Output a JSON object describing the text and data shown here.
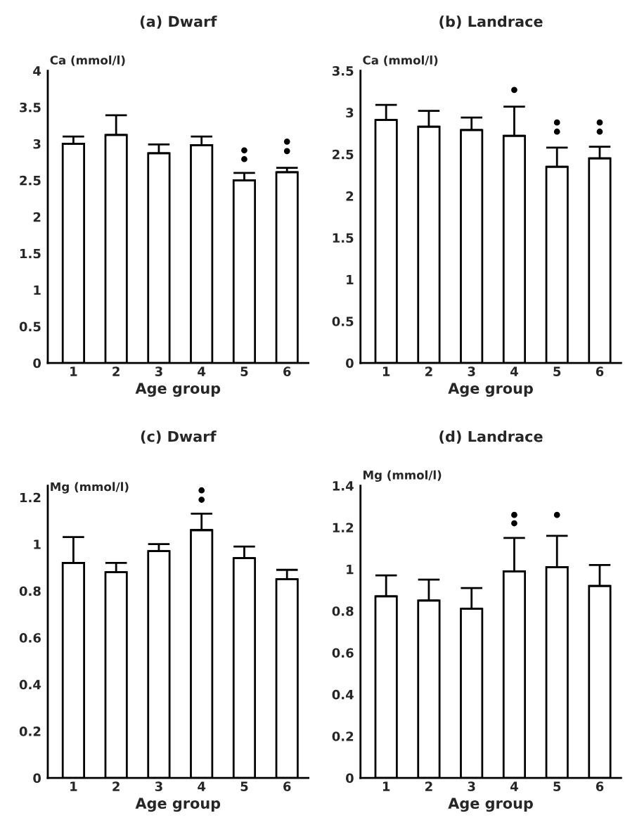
{
  "chart_data": [
    {
      "type": "bar",
      "title": "(a) Dwarf",
      "ylabel": "Ca (mmol/l)",
      "xlabel": "Age group",
      "categories": [
        "1",
        "2",
        "3",
        "4",
        "5",
        "6"
      ],
      "ylim": [
        0,
        4
      ],
      "yticks": [
        0,
        0.5,
        1,
        1.5,
        2,
        2.5,
        3,
        3.5,
        4
      ],
      "grid": false,
      "series": [
        {
          "color": "#ffffff",
          "values": [
            3.0,
            3.12,
            2.87,
            2.98,
            2.5,
            2.61
          ],
          "errors": [
            [
              3.0,
              3.1
            ],
            [
              3.12,
              3.39
            ],
            [
              2.87,
              2.99
            ],
            [
              2.98,
              3.1
            ],
            [
              2.5,
              2.6
            ],
            [
              2.61,
              2.67
            ]
          ]
        },
        {
          "type": "scatter",
          "color": "#000000",
          "marker": "circle",
          "x": [
            "5",
            "5",
            "6",
            "6"
          ],
          "values": [
            2.91,
            2.79,
            3.03,
            2.9
          ]
        }
      ]
    },
    {
      "type": "bar",
      "title": "(b) Landrace",
      "ylabel": "Ca (mmol/l)",
      "xlabel": "Age group",
      "categories": [
        "1",
        "2",
        "3",
        "4",
        "5",
        "6"
      ],
      "ylim": [
        0,
        3.5
      ],
      "yticks": [
        0,
        0.5,
        1,
        1.5,
        2,
        2.5,
        3,
        3.5
      ],
      "grid": false,
      "series": [
        {
          "color": "#ffffff",
          "values": [
            2.91,
            2.83,
            2.79,
            2.72,
            2.35,
            2.45
          ],
          "errors": [
            [
              2.91,
              3.09
            ],
            [
              2.83,
              3.02
            ],
            [
              2.79,
              2.94
            ],
            [
              2.72,
              3.07
            ],
            [
              2.35,
              2.58
            ],
            [
              2.45,
              2.59
            ]
          ]
        },
        {
          "type": "scatter",
          "color": "#000000",
          "marker": "circle",
          "x": [
            "4",
            "5",
            "5",
            "6",
            "6"
          ],
          "values": [
            3.27,
            2.88,
            2.77,
            2.88,
            2.77
          ]
        }
      ]
    },
    {
      "type": "bar",
      "title": "(c) Dwarf",
      "ylabel": "Mg (mmol/l)",
      "xlabel": "Age group",
      "categories": [
        "1",
        "2",
        "3",
        "4",
        "5",
        "6"
      ],
      "ylim": [
        0,
        1.25
      ],
      "yticks": [
        0,
        0.2,
        0.4,
        0.6,
        0.8,
        1,
        1.2
      ],
      "grid": false,
      "series": [
        {
          "color": "#ffffff",
          "values": [
            0.92,
            0.88,
            0.97,
            1.06,
            0.94,
            0.85
          ],
          "errors": [
            [
              0.92,
              1.03
            ],
            [
              0.88,
              0.92
            ],
            [
              0.97,
              1.0
            ],
            [
              1.06,
              1.13
            ],
            [
              0.94,
              0.99
            ],
            [
              0.85,
              0.89
            ]
          ]
        },
        {
          "type": "scatter",
          "color": "#000000",
          "marker": "circle",
          "x": [
            "4",
            "4"
          ],
          "values": [
            1.23,
            1.19
          ]
        }
      ]
    },
    {
      "type": "bar",
      "title": "(d) Landrace",
      "ylabel": "Mg (mmol/l)",
      "xlabel": "Age group",
      "categories": [
        "1",
        "2",
        "3",
        "4",
        "5",
        "6"
      ],
      "ylim": [
        0,
        1.4
      ],
      "yticks": [
        0,
        0.2,
        0.4,
        0.6,
        0.8,
        1,
        1.2,
        1.4
      ],
      "grid": false,
      "series": [
        {
          "color": "#ffffff",
          "values": [
            0.87,
            0.85,
            0.81,
            0.99,
            1.01,
            0.92
          ],
          "errors": [
            [
              0.87,
              0.97
            ],
            [
              0.85,
              0.95
            ],
            [
              0.81,
              0.91
            ],
            [
              0.99,
              1.15
            ],
            [
              1.01,
              1.16
            ],
            [
              0.92,
              1.02
            ]
          ]
        },
        {
          "type": "scatter",
          "color": "#000000",
          "marker": "circle",
          "x": [
            "4",
            "4",
            "5"
          ],
          "values": [
            1.26,
            1.22,
            1.26
          ]
        }
      ]
    }
  ]
}
